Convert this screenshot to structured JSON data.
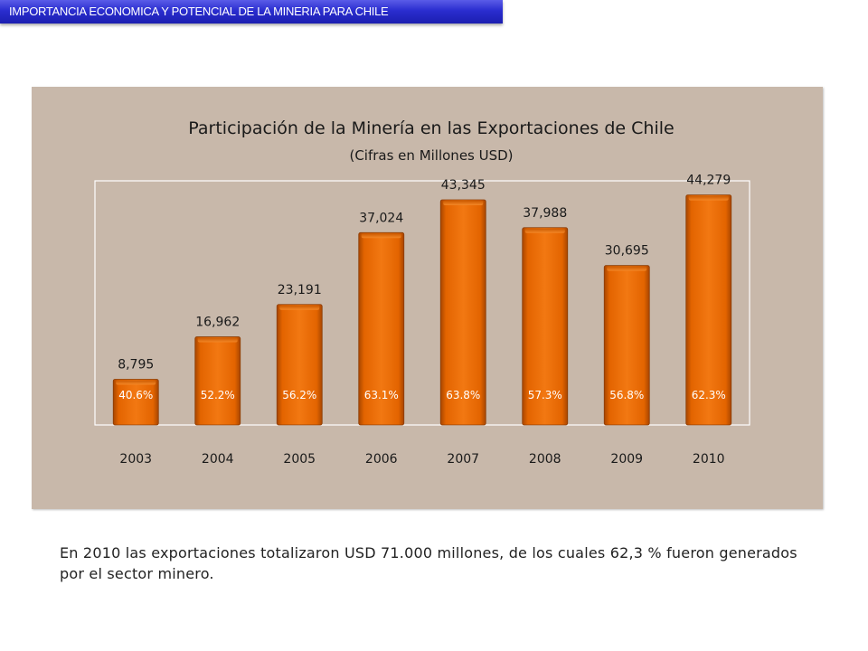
{
  "header": {
    "title": "IMPORTANCIA  ECONOMICA Y POTENCIAL DE LA MINERIA PARA CHILE"
  },
  "chart_data": {
    "type": "bar",
    "title": "Participación de la Minería en las Exportaciones de Chile",
    "subtitle": "(Cifras en Millones USD)",
    "categories": [
      "2003",
      "2004",
      "2005",
      "2006",
      "2007",
      "2008",
      "2009",
      "2010"
    ],
    "values": [
      8795,
      16962,
      23191,
      37024,
      43345,
      37988,
      30695,
      44279
    ],
    "value_labels": [
      "8,795",
      "16,962",
      "23,191",
      "37,024",
      "43,345",
      "37,988",
      "30,695",
      "44,279"
    ],
    "share_labels": [
      "40.6%",
      "52.2%",
      "56.2%",
      "63.1%",
      "63.8%",
      "57.3%",
      "56.8%",
      "62.3%"
    ],
    "xlabel": "",
    "ylabel": "",
    "ylim": [
      0,
      47000
    ],
    "grid": false,
    "bar_color": "#f07010",
    "background_color": "#c8b8aa"
  },
  "footer": {
    "text": "En 2010 las exportaciones totalizaron USD 71.000 millones, de los cuales 62,3 % fueron generados por el sector minero."
  }
}
